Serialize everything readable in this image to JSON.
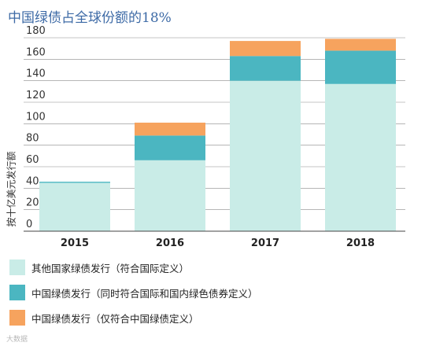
{
  "chart_data": {
    "type": "bar",
    "stacked": true,
    "title": "中国绿债占全球份额的18%",
    "ylabel": "按十亿美元发行额",
    "categories": [
      "2015",
      "2016",
      "2017",
      "2018"
    ],
    "ylim": [
      0,
      180
    ],
    "yticks": [
      "180",
      "160",
      "140",
      "120",
      "100",
      "80",
      "60",
      "40",
      "20",
      "0"
    ],
    "grid": true,
    "legend_position": "bottom",
    "series": [
      {
        "name": "其他国家绿债发行（符合国际定义）",
        "color": "#c9ece7",
        "values": [
          45,
          66,
          140,
          137
        ]
      },
      {
        "name": "中国绿债发行（同时符合国际和国内绿色债券定义）",
        "color": "#4bb6c1",
        "values": [
          1,
          23,
          23,
          31
        ]
      },
      {
        "name": "中国绿债发行（仅符合中国绿债定义）",
        "color": "#f6a35e",
        "values": [
          0,
          12,
          14,
          11
        ]
      }
    ]
  },
  "watermark": "大数据"
}
